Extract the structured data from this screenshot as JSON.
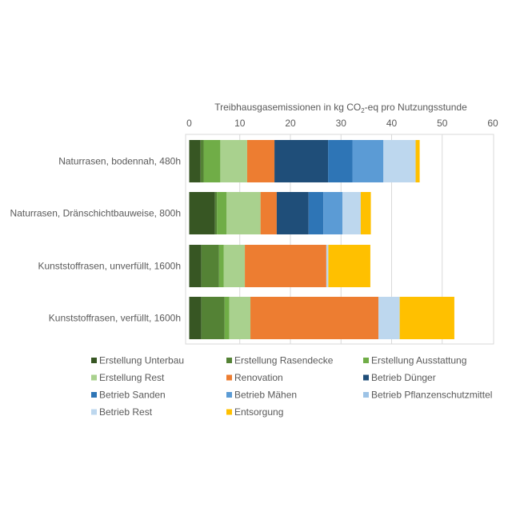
{
  "chart_data": {
    "type": "bar",
    "orientation": "horizontal",
    "stacked": true,
    "title_parts": {
      "before": "Treibhausgasemissionen in kg CO",
      "sub": "2",
      "after": "-eq pro Nutzungsstunde"
    },
    "xlim": [
      0,
      60
    ],
    "xticks": [
      0,
      10,
      20,
      30,
      40,
      50,
      60
    ],
    "grid": true,
    "legend_position": "bottom",
    "categories": [
      "Naturrasen, bodennah, 480h",
      "Naturrasen, Dränschichtbauweise, 800h",
      "Kunststoffrasen, unverfüllt, 1600h",
      "Kunststoffrasen, verfüllt, 1600h"
    ],
    "series": [
      {
        "name": "Erstellung Unterbau",
        "color": "#375623",
        "values": [
          2.25,
          5.1,
          2.4,
          2.4
        ]
      },
      {
        "name": "Erstellung Rasendecke",
        "color": "#548235",
        "values": [
          0.6,
          0.4,
          3.5,
          4.6
        ]
      },
      {
        "name": "Erstellung Ausstattung",
        "color": "#70AD47",
        "values": [
          3.3,
          1.9,
          0.9,
          0.9
        ]
      },
      {
        "name": "Erstellung Rest",
        "color": "#A9D18E",
        "values": [
          5.3,
          6.7,
          4.2,
          4.2
        ]
      },
      {
        "name": "Renovation",
        "color": "#ED7D31",
        "values": [
          5.4,
          3.2,
          16.1,
          25.3
        ]
      },
      {
        "name": "Betrieb Dünger",
        "color": "#1F4E79",
        "values": [
          10.6,
          6.3,
          0,
          0
        ]
      },
      {
        "name": "Betrieb Sanden",
        "color": "#2E75B6",
        "values": [
          4.8,
          2.9,
          0,
          0
        ]
      },
      {
        "name": "Betrieb Mähen",
        "color": "#5B9BD5",
        "values": [
          6.1,
          3.8,
          0,
          0
        ]
      },
      {
        "name": "Betrieb Pflanzenschutzmittel",
        "color": "#9DC3E6",
        "values": [
          0.1,
          0,
          0,
          0
        ]
      },
      {
        "name": "Betrieb Rest",
        "color": "#BDD7EE",
        "values": [
          6.3,
          3.6,
          0.4,
          4.2
        ]
      },
      {
        "name": "Entsorgung",
        "color": "#FFC000",
        "values": [
          0.8,
          2.0,
          8.3,
          10.8
        ]
      }
    ]
  }
}
